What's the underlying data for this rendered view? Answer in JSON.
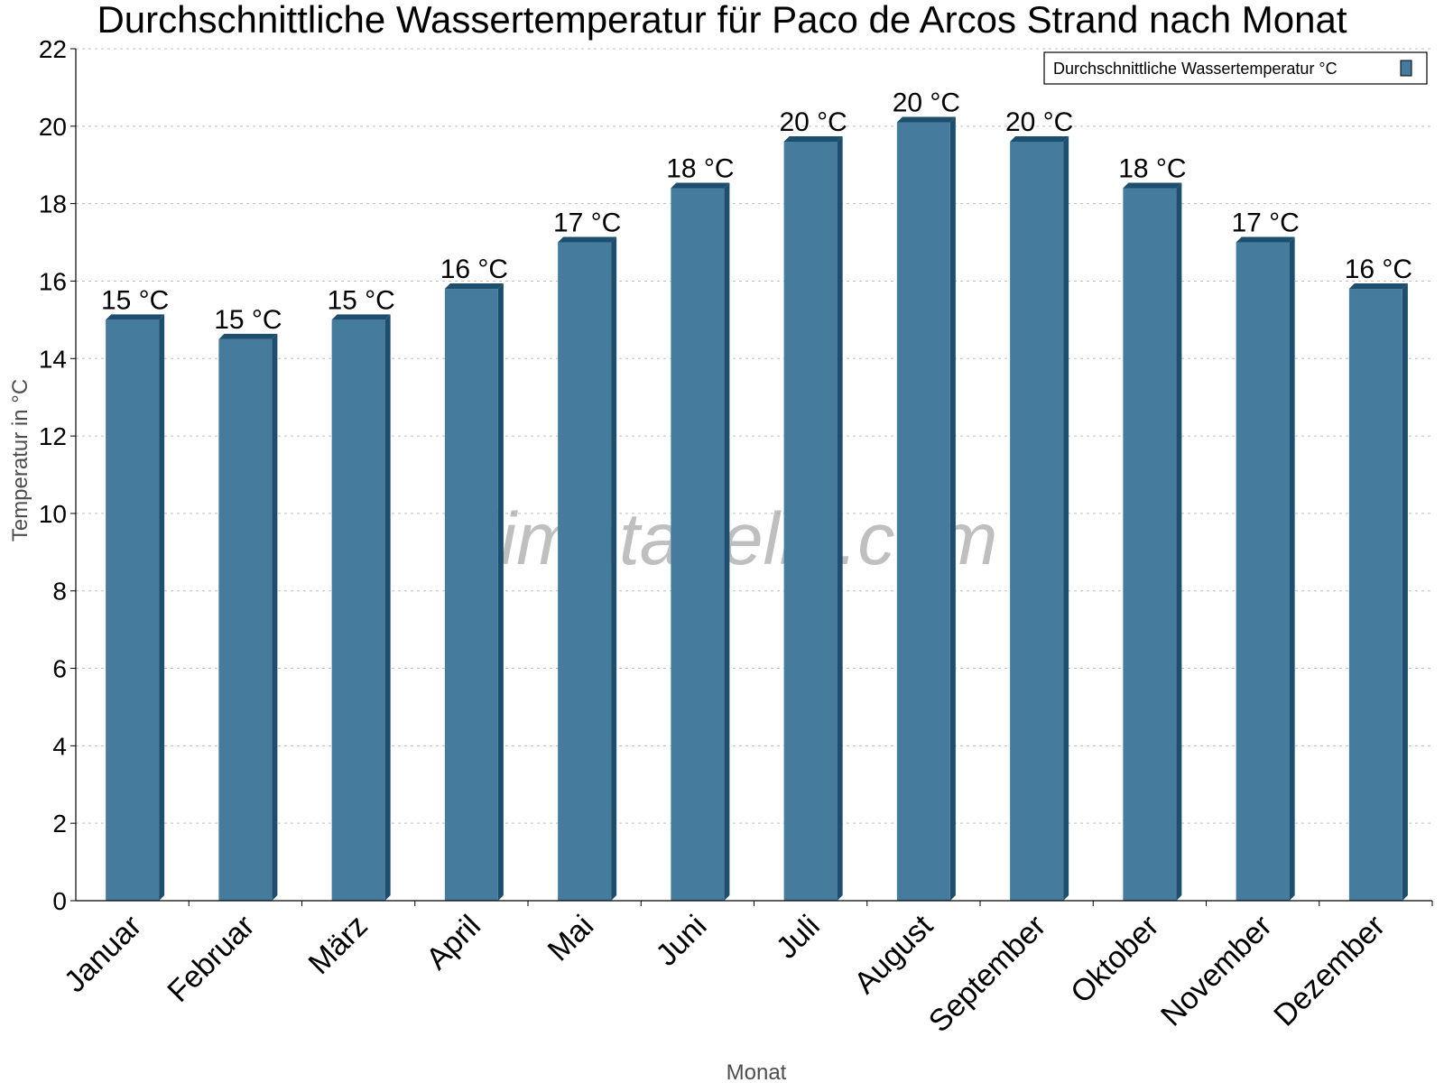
{
  "colors": {
    "bar_front": "#457b9d",
    "bar_side": "#1d4e6e",
    "bar_top": "#1d4e6e",
    "grid": "#bfbfbf",
    "axis": "#000000",
    "axis_label": "#4d4d4d"
  },
  "watermark": "klimatabelle.com",
  "chart_data": {
    "type": "bar",
    "title": "Durchschnittliche Wassertemperatur für Paco de Arcos Strand nach Monat",
    "xlabel": "Monat",
    "ylabel": "Temperatur in °C",
    "ylim": [
      0,
      22
    ],
    "yticks": [
      0,
      2,
      4,
      6,
      8,
      10,
      12,
      14,
      16,
      18,
      20,
      22
    ],
    "grid": true,
    "legend_position": "top-right",
    "categories": [
      "Januar",
      "Februar",
      "März",
      "April",
      "Mai",
      "Juni",
      "Juli",
      "August",
      "September",
      "Oktober",
      "November",
      "Dezember"
    ],
    "series": [
      {
        "name": "Durchschnittliche Wassertemperatur °C",
        "values": [
          15.0,
          14.5,
          15.0,
          15.8,
          17.0,
          18.4,
          19.6,
          20.1,
          19.6,
          18.4,
          17.0,
          15.8
        ],
        "labels": [
          "15 °C",
          "15 °C",
          "15 °C",
          "16 °C",
          "17 °C",
          "18 °C",
          "20 °C",
          "20 °C",
          "20 °C",
          "18 °C",
          "17 °C",
          "16 °C"
        ]
      }
    ]
  }
}
